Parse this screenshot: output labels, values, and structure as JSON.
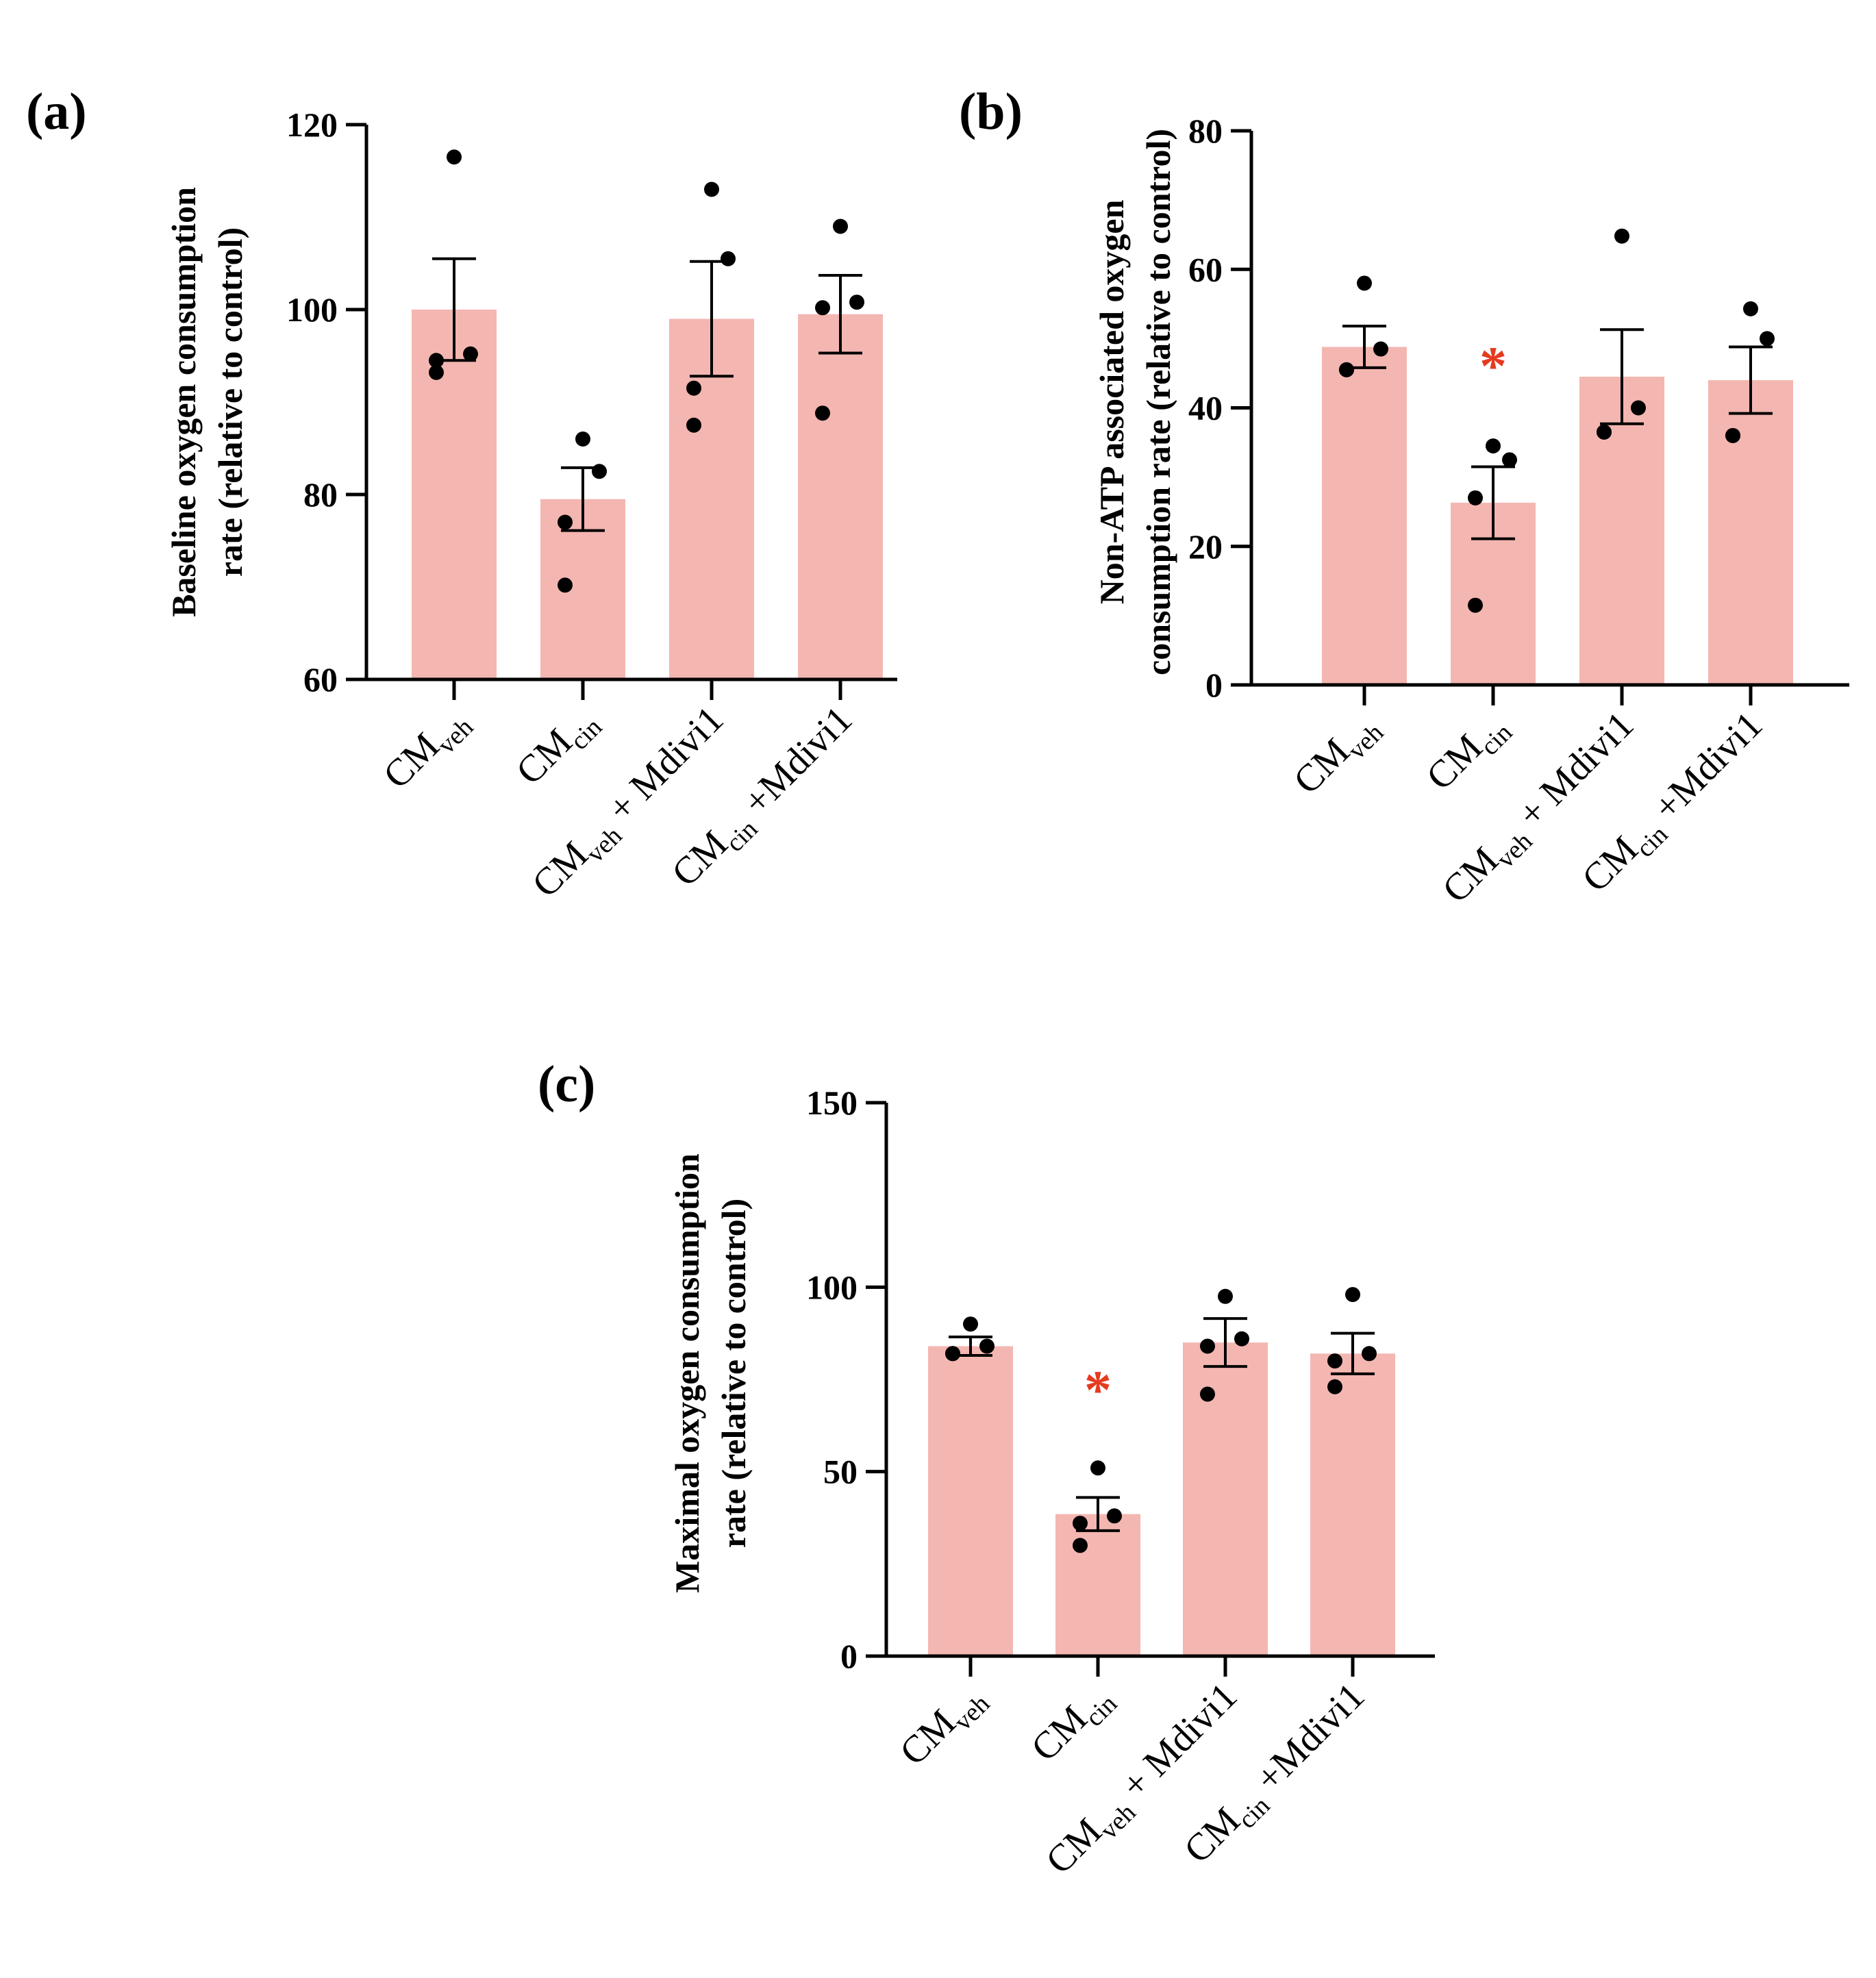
{
  "figure": {
    "bar_color": "#f4b6b1",
    "axis_color": "#000000",
    "point_color": "#000000",
    "sig_color": "#e53b1f"
  },
  "chart_data": [
    {
      "id": "a",
      "type": "bar",
      "panel_label": "(a)",
      "ylabel_lines": [
        "Baseline oxygen consumption",
        "rate (relative to control)"
      ],
      "ylim": [
        60,
        120
      ],
      "yticks": [
        60,
        80,
        100,
        120
      ],
      "categories": [
        {
          "main": "CM",
          "sub": "veh",
          "suffix": ""
        },
        {
          "main": "CM",
          "sub": "cin",
          "suffix": ""
        },
        {
          "main": "CM",
          "sub": "veh",
          "suffix": " + Mdivi1"
        },
        {
          "main": "CM",
          "sub": "cin",
          "suffix": " +Mdivi1"
        }
      ],
      "values": [
        100,
        79.5,
        99,
        99.5
      ],
      "sem": [
        5.5,
        3.4,
        6.2,
        4.2
      ],
      "points": [
        [
          116.5,
          94.5,
          95.2,
          93.2
        ],
        [
          86,
          82.5,
          77,
          70.2
        ],
        [
          113,
          105.5,
          91.5,
          87.5
        ],
        [
          109,
          100.8,
          100.2,
          88.8
        ]
      ],
      "significant": [
        false,
        false,
        false,
        false
      ],
      "sig_marker": "*"
    },
    {
      "id": "b",
      "type": "bar",
      "panel_label": "(b)",
      "ylabel_lines": [
        "Non-ATP associated oxygen",
        "consumption rate (relative to control)"
      ],
      "ylim": [
        0,
        80
      ],
      "yticks": [
        0,
        20,
        40,
        60,
        80
      ],
      "categories": [
        {
          "main": "CM",
          "sub": "veh",
          "suffix": ""
        },
        {
          "main": "CM",
          "sub": "cin",
          "suffix": ""
        },
        {
          "main": "CM",
          "sub": "veh",
          "suffix": " + Mdivi1"
        },
        {
          "main": "CM",
          "sub": "cin",
          "suffix": " +Mdivi1"
        }
      ],
      "values": [
        48.8,
        26.3,
        44.5,
        44
      ],
      "sem": [
        3.0,
        5.2,
        6.8,
        4.8
      ],
      "points": [
        [
          58,
          48.5,
          45.5,
          45.5
        ],
        [
          34.5,
          32.5,
          27,
          11.5
        ],
        [
          64.8,
          40,
          36.5,
          36.5
        ],
        [
          54.3,
          50,
          36,
          36
        ]
      ],
      "significant": [
        false,
        true,
        false,
        false
      ],
      "sig_marker": "*"
    },
    {
      "id": "c",
      "type": "bar",
      "panel_label": "(c)",
      "ylabel_lines": [
        "Maximal oxygen consumption",
        "rate (relative to control)"
      ],
      "ylim": [
        0,
        150
      ],
      "yticks": [
        0,
        50,
        100,
        150
      ],
      "categories": [
        {
          "main": "CM",
          "sub": "veh",
          "suffix": ""
        },
        {
          "main": "CM",
          "sub": "cin",
          "suffix": ""
        },
        {
          "main": "CM",
          "sub": "veh",
          "suffix": " + Mdivi1"
        },
        {
          "main": "CM",
          "sub": "cin",
          "suffix": " +Mdivi1"
        }
      ],
      "values": [
        84,
        38.5,
        85,
        82
      ],
      "sem": [
        2.5,
        4.5,
        6.5,
        5.5
      ],
      "points": [
        [
          90,
          84,
          82,
          82
        ],
        [
          51,
          38,
          36,
          30
        ],
        [
          97.5,
          86,
          84,
          71
        ],
        [
          98,
          82,
          80,
          73
        ]
      ],
      "significant": [
        false,
        true,
        false,
        false
      ],
      "sig_marker": "*"
    }
  ]
}
